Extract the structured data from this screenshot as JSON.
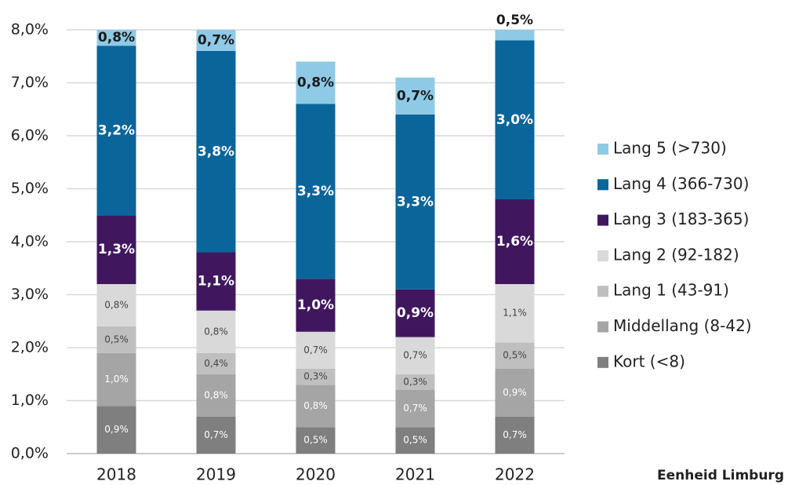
{
  "chart_data": {
    "type": "stacked_bar",
    "categories": [
      "2018",
      "2019",
      "2020",
      "2021",
      "2022"
    ],
    "series": [
      {
        "name": "Kort (<8)",
        "color": "#7f7f7f",
        "values": [
          0.9,
          0.7,
          0.5,
          0.5,
          0.7
        ],
        "value_labels": [
          "0,9%",
          "0,7%",
          "0,5%",
          "0,5%",
          "0,7%"
        ]
      },
      {
        "name": "Middellang (8-42)",
        "color": "#a5a5a5",
        "values": [
          1.0,
          0.8,
          0.8,
          0.7,
          0.9
        ],
        "value_labels": [
          "1,0%",
          "0,8%",
          "0,8%",
          "0,7%",
          "0,9%"
        ]
      },
      {
        "name": "Lang 1 (43-91)",
        "color": "#bfbfbf",
        "values": [
          0.5,
          0.4,
          0.3,
          0.3,
          0.5
        ],
        "value_labels": [
          "0,5%",
          "0,4%",
          "0,3%",
          "0,3%",
          "0,5%"
        ]
      },
      {
        "name": "Lang 2 (92-182)",
        "color": "#d9d9d9",
        "values": [
          0.8,
          0.8,
          0.7,
          0.7,
          1.1
        ],
        "value_labels": [
          "0,8%",
          "0,8%",
          "0,7%",
          "0,7%",
          "1,1%"
        ]
      },
      {
        "name": "Lang 3 (183-365)",
        "color": "#40175f",
        "values": [
          1.3,
          1.1,
          1.0,
          0.9,
          1.6
        ],
        "value_labels": [
          "1,3%",
          "1,1%",
          "1,0%",
          "0,9%",
          "1,6%"
        ]
      },
      {
        "name": "Lang 4 (366-730)",
        "color": "#0a659b",
        "values": [
          3.2,
          3.8,
          3.3,
          3.3,
          3.0
        ],
        "value_labels": [
          "3,2%",
          "3,8%",
          "3,3%",
          "3,3%",
          "3,0%"
        ]
      },
      {
        "name": "Lang 5 (>730)",
        "color": "#8ecae6",
        "values": [
          0.8,
          0.7,
          0.8,
          0.7,
          0.5
        ],
        "value_labels": [
          "0,8%",
          "0,7%",
          "0,8%",
          "0,7%",
          "0,5%"
        ]
      }
    ],
    "ylim": [
      0,
      8
    ],
    "yticks": [
      {
        "value": 0,
        "label": "0,0%"
      },
      {
        "value": 1,
        "label": "1,0%"
      },
      {
        "value": 2,
        "label": "2,0%"
      },
      {
        "value": 3,
        "label": "3,0%"
      },
      {
        "value": 4,
        "label": "4,0%"
      },
      {
        "value": 5,
        "label": "5,0%"
      },
      {
        "value": 6,
        "label": "6,0%"
      },
      {
        "value": 7,
        "label": "7,0%"
      },
      {
        "value": 8,
        "label": "8,0%"
      }
    ],
    "grid": true,
    "legend": "right",
    "annotation": "Eenheid Limburg"
  }
}
